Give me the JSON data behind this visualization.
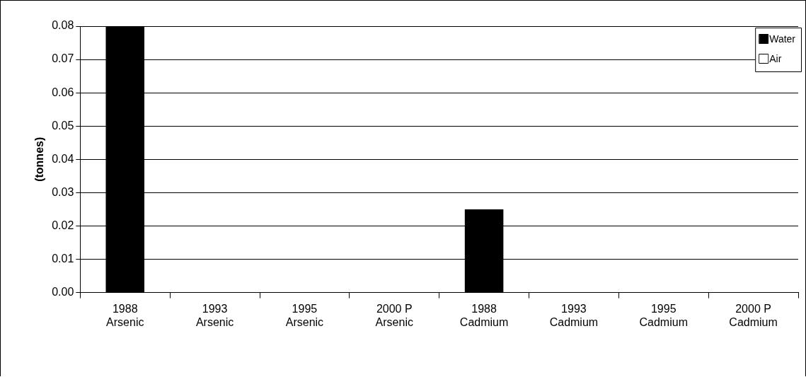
{
  "chart_data": {
    "type": "bar",
    "ylabel": "(tonnes)",
    "categories": [
      "1988\nArsenic",
      "1993\nArsenic",
      "1995\nArsenic",
      "2000 P\nArsenic",
      "1988\nCadmium",
      "1993\nCadmium",
      "1995\nCadmium",
      "2000 P\nCadmium"
    ],
    "series": [
      {
        "name": "Water",
        "color": "#000000",
        "values": [
          0.08,
          0,
          0,
          0,
          0.025,
          0,
          0,
          0
        ]
      },
      {
        "name": "Air",
        "color": "#ffffff",
        "values": [
          0,
          0,
          0,
          0,
          0,
          0,
          0,
          0
        ]
      }
    ],
    "ylim": [
      0,
      0.08
    ],
    "yticks": [
      {
        "value": 0,
        "label": "0.00"
      },
      {
        "value": 0.01,
        "label": "0.01"
      },
      {
        "value": 0.02,
        "label": "0.02"
      },
      {
        "value": 0.03,
        "label": "0.03"
      },
      {
        "value": 0.04,
        "label": "0.04"
      },
      {
        "value": 0.05,
        "label": "0.05"
      },
      {
        "value": 0.06,
        "label": "0.06"
      },
      {
        "value": 0.07,
        "label": "0.07"
      },
      {
        "value": 0.08,
        "label": "0.08"
      }
    ],
    "grid": "y",
    "legend": "top right"
  }
}
